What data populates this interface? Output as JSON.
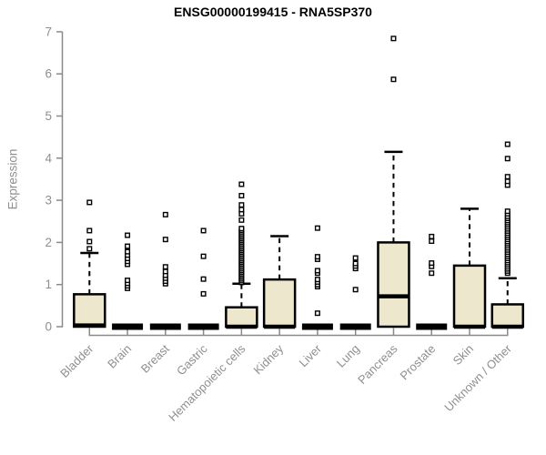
{
  "chart_data": {
    "type": "boxplot",
    "title": "ENSG00000199415 - RNA5SP370",
    "ylabel": "Expression",
    "xlabel": "",
    "ylim": [
      0,
      7
    ],
    "yticks": [
      0,
      1,
      2,
      3,
      4,
      5,
      6,
      7
    ],
    "grid": false,
    "categories": [
      "Bladder",
      "Brain",
      "Breast",
      "Gastric",
      "Hematopoietic cells",
      "Kidney",
      "Liver",
      "Lung",
      "Pancreas",
      "Prostate",
      "Skin",
      "Unknown / Other"
    ],
    "boxes": [
      {
        "category": "Bladder",
        "whisker_low": 0,
        "q1": 0,
        "median": 0.03,
        "q3": 0.77,
        "whisker_high": 1.75,
        "outliers": [
          1.85,
          2.02,
          2.28,
          2.95
        ]
      },
      {
        "category": "Brain",
        "whisker_low": 0,
        "q1": 0,
        "median": 0,
        "q3": 0,
        "whisker_high": 0,
        "outliers": [
          0.91,
          0.97,
          1.03,
          1.1,
          1.48,
          1.55,
          1.62,
          1.7,
          1.78,
          1.91,
          2.17
        ]
      },
      {
        "category": "Breast",
        "whisker_low": 0,
        "q1": 0,
        "median": 0,
        "q3": 0,
        "whisker_high": 0,
        "outliers": [
          1.02,
          1.08,
          1.15,
          1.22,
          1.31,
          1.42,
          2.07,
          2.66
        ]
      },
      {
        "category": "Gastric",
        "whisker_low": 0,
        "q1": 0,
        "median": 0,
        "q3": 0,
        "whisker_high": 0,
        "outliers": [
          0.78,
          1.13,
          1.67,
          2.28
        ]
      },
      {
        "category": "Hematopoietic cells",
        "whisker_low": 0,
        "q1": 0,
        "median": 0,
        "q3": 0.46,
        "whisker_high": 1.02,
        "outliers": [
          1.05,
          1.09,
          1.13,
          1.17,
          1.21,
          1.25,
          1.29,
          1.33,
          1.37,
          1.41,
          1.45,
          1.49,
          1.53,
          1.57,
          1.61,
          1.65,
          1.69,
          1.73,
          1.77,
          1.81,
          1.85,
          1.89,
          1.93,
          1.97,
          2.01,
          2.05,
          2.09,
          2.13,
          2.17,
          2.21,
          2.25,
          2.29,
          2.33,
          2.53,
          2.68,
          2.78,
          2.89,
          3.11,
          3.38
        ]
      },
      {
        "category": "Kidney",
        "whisker_low": 0,
        "q1": 0,
        "median": 0,
        "q3": 1.12,
        "whisker_high": 2.15,
        "outliers": []
      },
      {
        "category": "Liver",
        "whisker_low": 0,
        "q1": 0,
        "median": 0,
        "q3": 0,
        "whisker_high": 0,
        "outliers": [
          0.32,
          0.95,
          1.0,
          1.06,
          1.12,
          1.27,
          1.33,
          1.6,
          1.66,
          2.34
        ]
      },
      {
        "category": "Lung",
        "whisker_low": 0,
        "q1": 0,
        "median": 0,
        "q3": 0,
        "whisker_high": 0,
        "outliers": [
          0.88,
          1.38,
          1.44,
          1.5,
          1.63
        ]
      },
      {
        "category": "Pancreas",
        "whisker_low": 0,
        "q1": 0,
        "median": 0.72,
        "q3": 2.0,
        "whisker_high": 4.15,
        "outliers": [
          5.87,
          6.84
        ]
      },
      {
        "category": "Prostate",
        "whisker_low": 0,
        "q1": 0,
        "median": 0,
        "q3": 0,
        "whisker_high": 0,
        "outliers": [
          1.27,
          1.43,
          1.51,
          2.03,
          2.14
        ]
      },
      {
        "category": "Skin",
        "whisker_low": 0,
        "q1": 0,
        "median": 0,
        "q3": 1.45,
        "whisker_high": 2.8,
        "outliers": []
      },
      {
        "category": "Unknown / Other",
        "whisker_low": 0,
        "q1": 0,
        "median": 0,
        "q3": 0.53,
        "whisker_high": 1.15,
        "outliers": [
          1.27,
          1.32,
          1.37,
          1.42,
          1.47,
          1.52,
          1.57,
          1.62,
          1.67,
          1.72,
          1.77,
          1.82,
          1.87,
          1.92,
          1.97,
          2.02,
          2.07,
          2.12,
          2.17,
          2.22,
          2.27,
          2.32,
          2.37,
          2.42,
          2.47,
          2.52,
          2.57,
          2.62,
          2.68,
          2.74,
          3.36,
          3.45,
          3.56,
          3.99,
          4.33
        ]
      }
    ],
    "style": {
      "box_fill": "#EDE8CD",
      "box_stroke": "#000000",
      "median_color": "#000000",
      "outlier_fill": "#ffffff",
      "outlier_stroke": "#000000",
      "axis_color": "#8a8a8a",
      "label_color": "#8f8f8f",
      "title_color": "#000000",
      "background": "#ffffff",
      "legend": "none"
    }
  }
}
